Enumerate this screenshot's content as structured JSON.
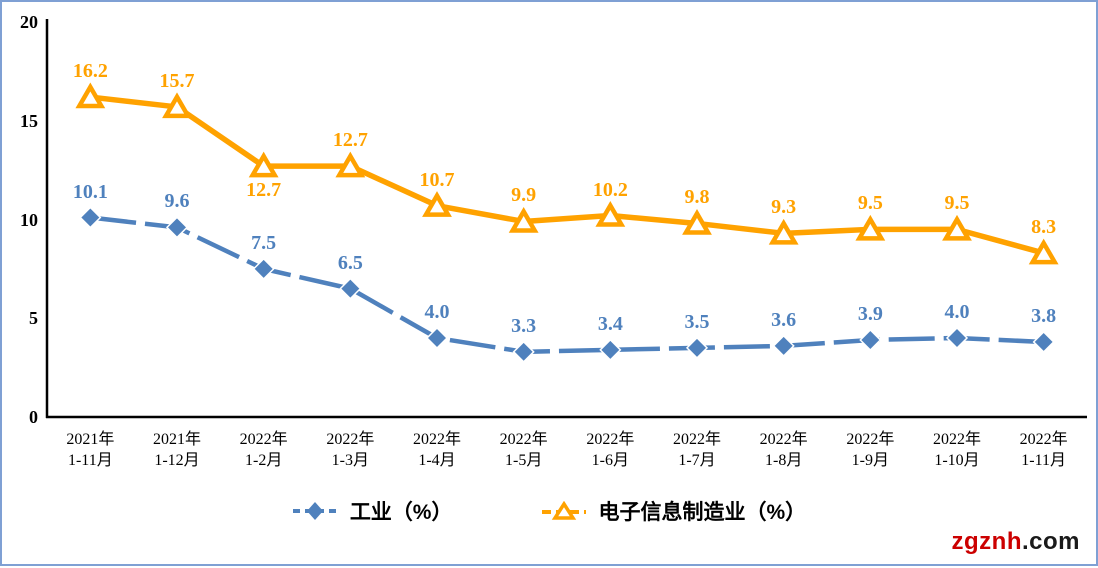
{
  "chart_data": {
    "type": "line",
    "title": "",
    "xlabel": "",
    "ylabel": "",
    "ylim": [
      0,
      20
    ],
    "yticks": [
      "0",
      "5",
      "10",
      "15",
      "20"
    ],
    "grid": false,
    "legend_position": "bottom",
    "categories": [
      [
        "2021年",
        "1-11月"
      ],
      [
        "2021年",
        "1-12月"
      ],
      [
        "2022年",
        "1-2月"
      ],
      [
        "2022年",
        "1-3月"
      ],
      [
        "2022年",
        "1-4月"
      ],
      [
        "2022年",
        "1-5月"
      ],
      [
        "2022年",
        "1-6月"
      ],
      [
        "2022年",
        "1-7月"
      ],
      [
        "2022年",
        "1-8月"
      ],
      [
        "2022年",
        "1-9月"
      ],
      [
        "2022年",
        "1-10月"
      ],
      [
        "2022年",
        "1-11月"
      ]
    ],
    "series": [
      {
        "name": "工业（%）",
        "values": [
          10.1,
          9.6,
          7.5,
          6.5,
          4.0,
          3.3,
          3.4,
          3.5,
          3.6,
          3.9,
          4.0,
          3.8
        ],
        "labels": [
          "10.1",
          "9.6",
          "7.5",
          "6.5",
          "4.0",
          "3.3",
          "3.4",
          "3.5",
          "3.6",
          "3.9",
          "4.0",
          "3.8"
        ],
        "color": "#4F81BD",
        "marker": "diamond",
        "line_style": "dashed",
        "label_below_indices": []
      },
      {
        "name": "电子信息制造业（%）",
        "values": [
          16.2,
          15.7,
          12.7,
          12.7,
          10.7,
          9.9,
          10.2,
          9.8,
          9.3,
          9.5,
          9.5,
          8.3
        ],
        "labels": [
          "16.2",
          "15.7",
          "12.7",
          "12.7",
          "10.7",
          "9.9",
          "10.2",
          "9.8",
          "9.3",
          "9.5",
          "9.5",
          "8.3"
        ],
        "color": "#FFA200",
        "marker": "triangle",
        "line_style": "solid",
        "label_below_indices": [
          2
        ]
      }
    ]
  },
  "watermark": {
    "primary": "zgznh",
    "secondary": ".com"
  }
}
